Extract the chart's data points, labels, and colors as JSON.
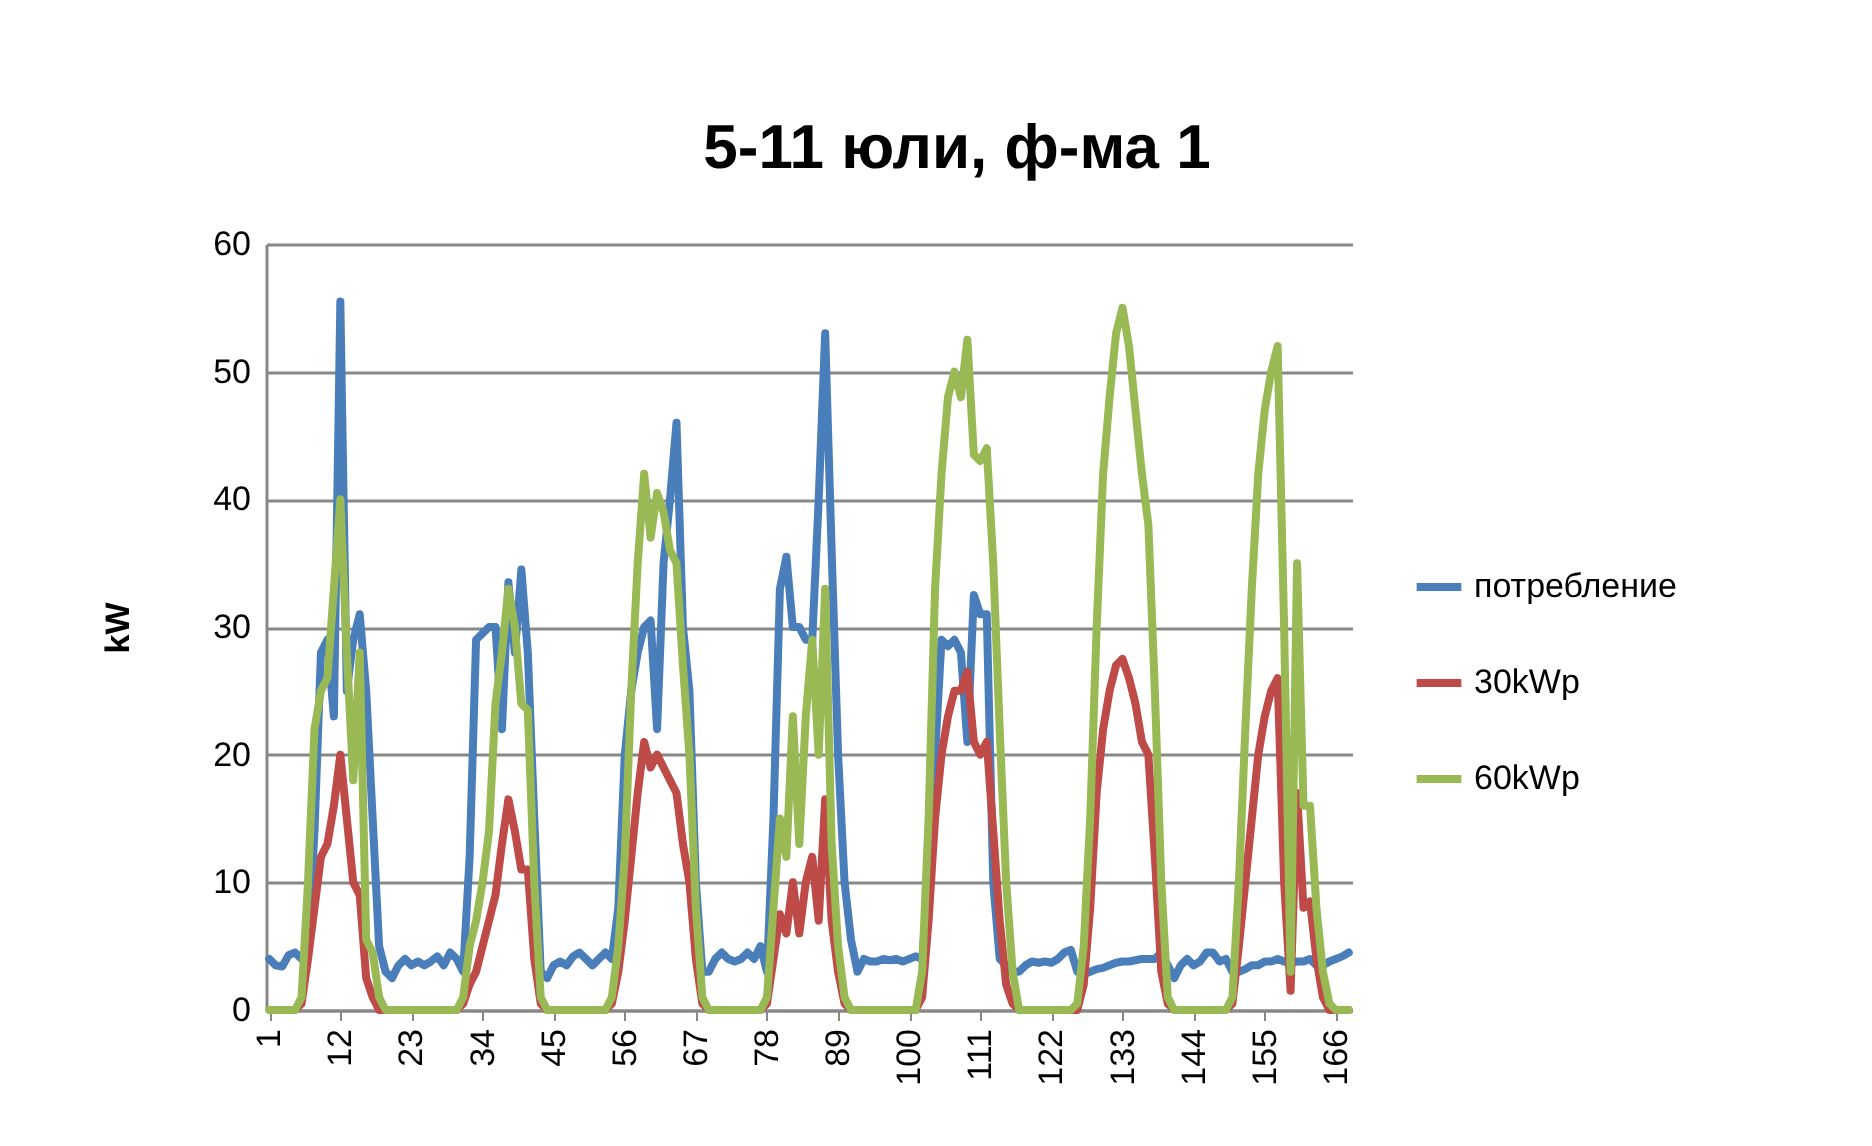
{
  "chart_data": {
    "type": "line",
    "title": "5-11 юли, ф-ма 1",
    "ylabel": "kW",
    "x": [
      1,
      2,
      3,
      4,
      5,
      6,
      7,
      8,
      9,
      10,
      11,
      12,
      13,
      14,
      15,
      16,
      17,
      18,
      19,
      20,
      21,
      22,
      23,
      24,
      25,
      26,
      27,
      28,
      29,
      30,
      31,
      32,
      33,
      34,
      35,
      36,
      37,
      38,
      39,
      40,
      41,
      42,
      43,
      44,
      45,
      46,
      47,
      48,
      49,
      50,
      51,
      52,
      53,
      54,
      55,
      56,
      57,
      58,
      59,
      60,
      61,
      62,
      63,
      64,
      65,
      66,
      67,
      68,
      69,
      70,
      71,
      72,
      73,
      74,
      75,
      76,
      77,
      78,
      79,
      80,
      81,
      82,
      83,
      84,
      85,
      86,
      87,
      88,
      89,
      90,
      91,
      92,
      93,
      94,
      95,
      96,
      97,
      98,
      99,
      100,
      101,
      102,
      103,
      104,
      105,
      106,
      107,
      108,
      109,
      110,
      111,
      112,
      113,
      114,
      115,
      116,
      117,
      118,
      119,
      120,
      121,
      122,
      123,
      124,
      125,
      126,
      127,
      128,
      129,
      130,
      131,
      132,
      133,
      134,
      135,
      136,
      137,
      138,
      139,
      140,
      141,
      142,
      143,
      144,
      145,
      146,
      147,
      148,
      149,
      150,
      151,
      152,
      153,
      154,
      155,
      156,
      157,
      158,
      159,
      160,
      161,
      162,
      163,
      164,
      165,
      166,
      167,
      168
    ],
    "series": [
      {
        "name": "потребление",
        "color": "#4a7ebb",
        "values": [
          4,
          3.5,
          3.4,
          4.3,
          4.5,
          4,
          5,
          14,
          28,
          29,
          23,
          55.5,
          25,
          29,
          31,
          25,
          15,
          5,
          3,
          2.5,
          3.5,
          4,
          3.5,
          3.8,
          3.5,
          3.8,
          4.2,
          3.5,
          4.5,
          4,
          3,
          12,
          29,
          29.5,
          30,
          30,
          22,
          33.5,
          28,
          34.5,
          28,
          15,
          3,
          2.5,
          3.5,
          3.8,
          3.5,
          4.2,
          4.5,
          4,
          3.5,
          4,
          4.5,
          4,
          8,
          20,
          25,
          28,
          30,
          30.5,
          22,
          35,
          40,
          46,
          30,
          25,
          10,
          3,
          3,
          4,
          4.5,
          4,
          3.8,
          4,
          4.5,
          4,
          5,
          3,
          15,
          33,
          35.5,
          30,
          30,
          29,
          29,
          40,
          53,
          36,
          20,
          10,
          5.5,
          3,
          4,
          3.8,
          3.8,
          4,
          3.9,
          4,
          3.8,
          4,
          4.2,
          4,
          10,
          20,
          29,
          28.5,
          29,
          28,
          21,
          32.5,
          31,
          31,
          10,
          4,
          3.5,
          3,
          3,
          3.5,
          3.8,
          3.7,
          3.8,
          3.7,
          4,
          4.5,
          4.7,
          3,
          2.8,
          3,
          3.2,
          3.3,
          3.5,
          3.7,
          3.8,
          3.8,
          3.9,
          4,
          4,
          4,
          4.5,
          3.5,
          2.5,
          3.5,
          4,
          3.5,
          3.8,
          4.5,
          4.5,
          3.8,
          4,
          3,
          3,
          3.2,
          3.5,
          3.5,
          3.8,
          3.8,
          4,
          3.8,
          3.7,
          3.8,
          3.8,
          4,
          3.5,
          3.5,
          3.8,
          4,
          4.2,
          4.5
        ]
      },
      {
        "name": "30kWp",
        "color": "#be4b48",
        "values": [
          null,
          null,
          0,
          0,
          0,
          0.5,
          4,
          8,
          12,
          13,
          16,
          20,
          15,
          10,
          9,
          2.5,
          1,
          0,
          0,
          0,
          0,
          0,
          0,
          0,
          0,
          0,
          0,
          0,
          0,
          0,
          0.5,
          2,
          3,
          5,
          7,
          9,
          13,
          16.5,
          14,
          11,
          11,
          4,
          0.5,
          0,
          0,
          0,
          0,
          0,
          0,
          0,
          0,
          0,
          0,
          0.5,
          3,
          7,
          12,
          17,
          21,
          19,
          20,
          19,
          18,
          17,
          13,
          10,
          4,
          0.5,
          0,
          0,
          0,
          0,
          0,
          0,
          0,
          0,
          0,
          0.5,
          4,
          7.5,
          6,
          10,
          6,
          10,
          12,
          7,
          16.5,
          7,
          3,
          0.5,
          0,
          0,
          0,
          0,
          0,
          0,
          0,
          0,
          0,
          0,
          0,
          1,
          7,
          15,
          20,
          23,
          25,
          25,
          26.5,
          21,
          20,
          21,
          14,
          7,
          2,
          0.5,
          0,
          0,
          0,
          0,
          0,
          0,
          0,
          0,
          0,
          0,
          2,
          8,
          17,
          22,
          25,
          27,
          27.5,
          26,
          24,
          21,
          20,
          12,
          3,
          0.5,
          0,
          0,
          0,
          0,
          0,
          0,
          0,
          0,
          0,
          0.5,
          5,
          10,
          15,
          20,
          23,
          25,
          26,
          10,
          1.5,
          17,
          8,
          8.5,
          4,
          1,
          0,
          0,
          0,
          0
        ]
      },
      {
        "name": "60kWp",
        "color": "#98b954",
        "values": [
          0,
          0,
          0,
          0,
          0,
          1,
          10,
          22,
          25,
          26,
          33,
          40,
          28,
          18,
          28,
          5.5,
          4.5,
          1,
          0,
          0,
          0,
          0,
          0,
          0,
          0,
          0,
          0,
          0,
          0,
          0,
          1,
          5,
          7,
          10,
          14,
          24,
          28,
          33,
          30,
          24,
          23.5,
          10,
          1,
          0,
          0,
          0,
          0,
          0,
          0,
          0,
          0,
          0,
          0,
          1,
          5,
          12,
          25,
          35,
          42,
          37,
          40.5,
          39,
          36,
          35,
          27,
          20,
          8,
          1,
          0,
          0,
          0,
          0,
          0,
          0,
          0,
          0,
          0,
          1,
          8,
          15,
          12,
          23,
          13,
          23,
          29,
          20,
          33,
          13,
          5,
          1,
          0,
          0,
          0,
          0,
          0,
          0,
          0,
          0,
          0,
          0,
          0,
          3,
          15,
          33,
          42,
          48,
          50,
          48,
          52.5,
          43.5,
          43,
          44,
          35,
          22,
          10,
          3,
          0,
          0,
          0,
          0,
          0,
          0,
          0,
          0,
          0,
          0.5,
          5,
          15,
          30,
          42,
          48,
          53,
          55,
          52,
          47,
          42,
          38,
          25,
          10,
          1,
          0,
          0,
          0,
          0,
          0,
          0,
          0,
          0,
          0,
          1,
          10,
          22,
          33,
          42,
          47,
          50,
          52,
          30,
          3,
          35,
          16,
          16,
          8,
          3,
          0.5,
          0,
          0,
          0
        ]
      }
    ],
    "xlim": [
      0.5,
      168.5
    ],
    "xticks": [
      1,
      12,
      23,
      34,
      45,
      56,
      67,
      78,
      89,
      100,
      111,
      122,
      133,
      144,
      155,
      166
    ],
    "ylim": [
      0,
      60
    ],
    "yticks": [
      0,
      10,
      20,
      30,
      40,
      50,
      60
    ],
    "grid": "y",
    "legend": "right",
    "line_style": "solid",
    "marker": "none"
  }
}
